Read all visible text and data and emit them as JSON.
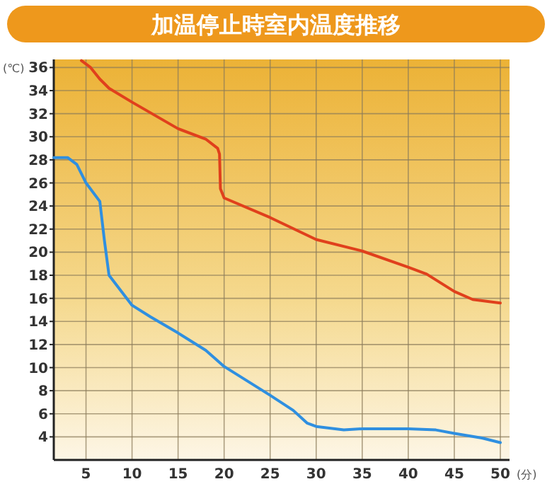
{
  "chart_data": {
    "type": "line",
    "title": "加温停止時室内温度推移",
    "xlabel": "(分)",
    "ylabel": "(℃)",
    "xlim": [
      1.5,
      51
    ],
    "ylim": [
      2,
      36.7
    ],
    "xticks": [
      5,
      10,
      15,
      20,
      25,
      30,
      35,
      40,
      45,
      50
    ],
    "yticks": [
      4,
      6,
      8,
      10,
      12,
      14,
      16,
      18,
      20,
      22,
      24,
      26,
      28,
      30,
      32,
      34,
      36
    ],
    "grid": true,
    "marker": "none",
    "line_style": "solid",
    "series": [
      {
        "color": "#e0401c",
        "x": [
          4.5,
          5.5,
          6.5,
          7.5,
          10,
          15,
          18,
          19.3,
          19.5,
          19.6,
          20,
          25,
          30,
          35,
          40,
          42,
          45,
          47,
          50
        ],
        "values": [
          36.6,
          36,
          35,
          34.2,
          33,
          30.7,
          29.8,
          29,
          28.5,
          25.5,
          24.7,
          23,
          21.1,
          20.1,
          18.7,
          18.1,
          16.6,
          15.9,
          15.6
        ]
      },
      {
        "color": "#2f8fe0",
        "x": [
          1.5,
          3,
          4,
          5,
          6.5,
          7,
          7.5,
          10,
          12,
          15,
          18,
          20,
          25,
          27.5,
          29,
          30,
          33,
          35,
          40,
          43,
          45,
          48,
          50
        ],
        "values": [
          28.2,
          28.2,
          27.6,
          26,
          24.4,
          21,
          18,
          15.4,
          14.4,
          13,
          11.5,
          10.1,
          7.6,
          6.3,
          5.2,
          4.9,
          4.6,
          4.7,
          4.7,
          4.6,
          4.3,
          3.9,
          3.5
        ]
      }
    ]
  }
}
